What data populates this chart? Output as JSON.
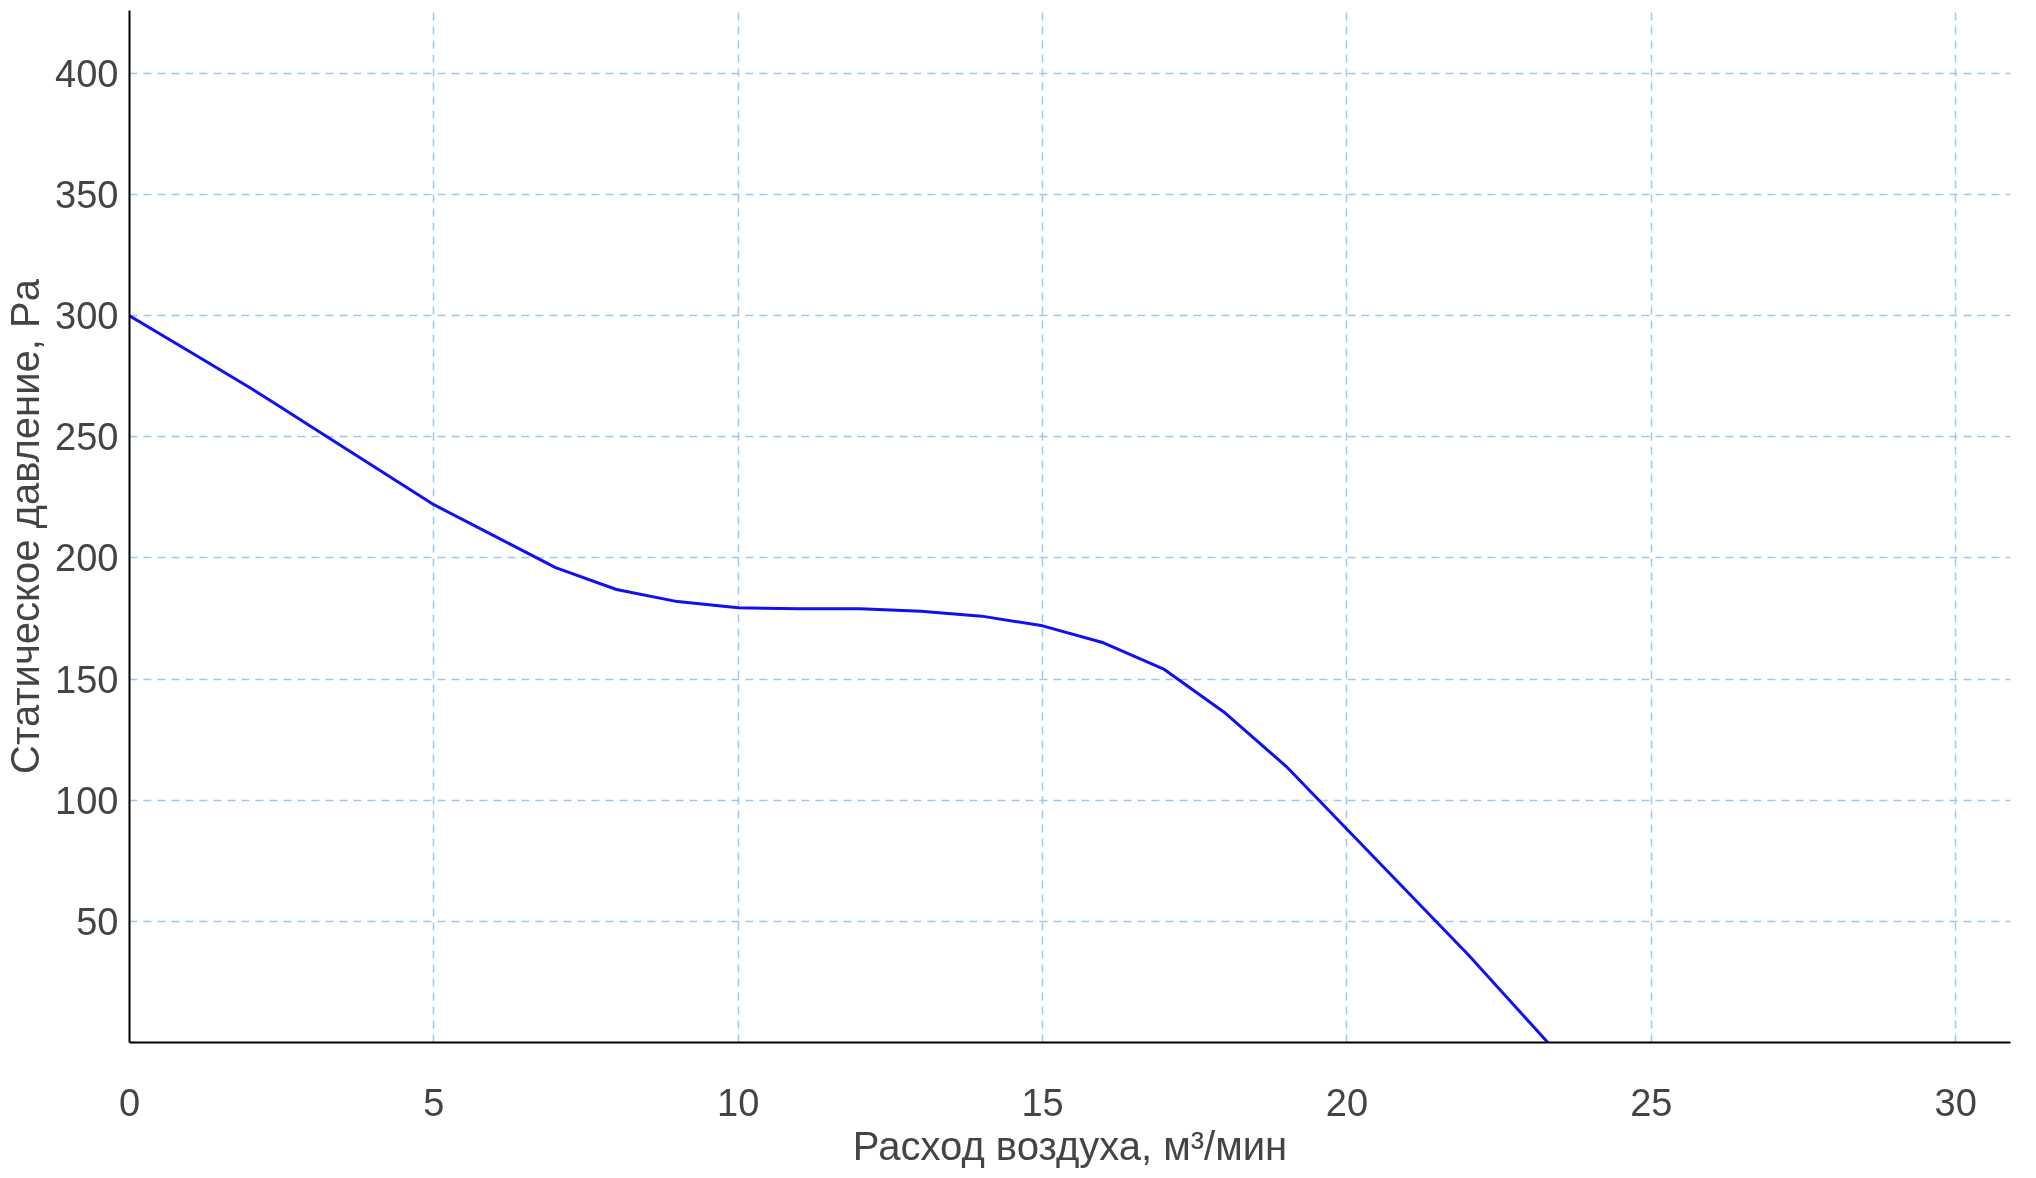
{
  "chart_data": {
    "type": "line",
    "xlabel": "Расход воздуха, м³/мин",
    "ylabel": "Статическое давление, Pa",
    "x": [
      0,
      1,
      2,
      2.5,
      3,
      4,
      5,
      6,
      7,
      8,
      9,
      10,
      11,
      12,
      13,
      14,
      15,
      16,
      17,
      18,
      19,
      20,
      21,
      22,
      23.3
    ],
    "series": [
      {
        "color": "#1010f0",
        "values": [
          300,
          285,
          270,
          262,
          254,
          238,
          222,
          209,
          196,
          187,
          182,
          179.5,
          179,
          179,
          178,
          176,
          172,
          165,
          154,
          136,
          114,
          88,
          62,
          36,
          0
        ]
      }
    ],
    "xlim": [
      0,
      30.9
    ],
    "ylim": [
      0,
      426
    ],
    "xticks": [
      0,
      5,
      10,
      15,
      20,
      25,
      30
    ],
    "yticks": [
      50,
      100,
      150,
      200,
      250,
      300,
      350,
      400
    ],
    "grid": true,
    "line_style": "solid"
  }
}
